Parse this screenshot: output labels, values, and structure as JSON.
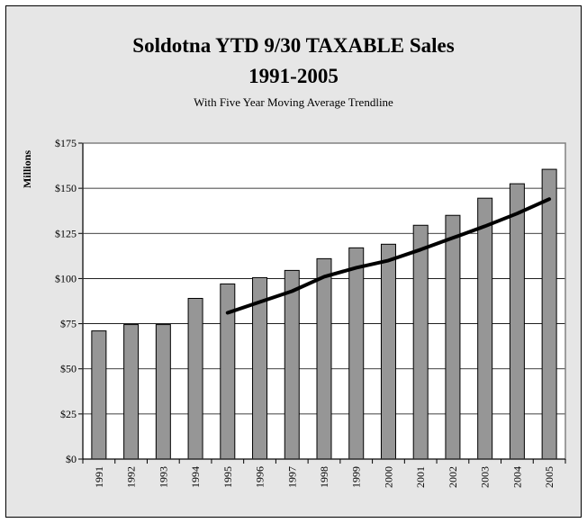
{
  "title_line1": "Soldotna YTD 9/30 TAXABLE Sales",
  "title_line2": "1991-2005",
  "subtitle": "With Five Year Moving Average Trendline",
  "chart_data": {
    "type": "bar",
    "ylabel": "Millions",
    "ylim": [
      0,
      175
    ],
    "yticks": [
      0,
      25,
      50,
      75,
      100,
      125,
      150,
      175
    ],
    "ytick_labels": [
      "$0",
      "$25",
      "$50",
      "$75",
      "$100",
      "$125",
      "$150",
      "$175"
    ],
    "categories": [
      "1991",
      "1992",
      "1993",
      "1994",
      "1995",
      "1996",
      "1997",
      "1998",
      "1999",
      "2000",
      "2001",
      "2002",
      "2003",
      "2004",
      "2005"
    ],
    "values": [
      71,
      74.5,
      74.5,
      89,
      97,
      100.5,
      104.5,
      111,
      117,
      119,
      129.5,
      135,
      144.5,
      152.5,
      160.5
    ],
    "trendline": {
      "type": "line",
      "x": [
        "1995",
        "1996",
        "1997",
        "1998",
        "1999",
        "2000",
        "2001",
        "2002",
        "2003",
        "2004",
        "2005"
      ],
      "values": [
        81,
        87,
        93,
        101,
        106,
        110,
        116,
        122.5,
        129,
        136,
        144
      ]
    },
    "grid": true,
    "legend": "none",
    "bar_color": "#969696",
    "plot_bg": "#ffffff",
    "frame_bg": "#e6e6e6",
    "trend_color": "#000000"
  }
}
